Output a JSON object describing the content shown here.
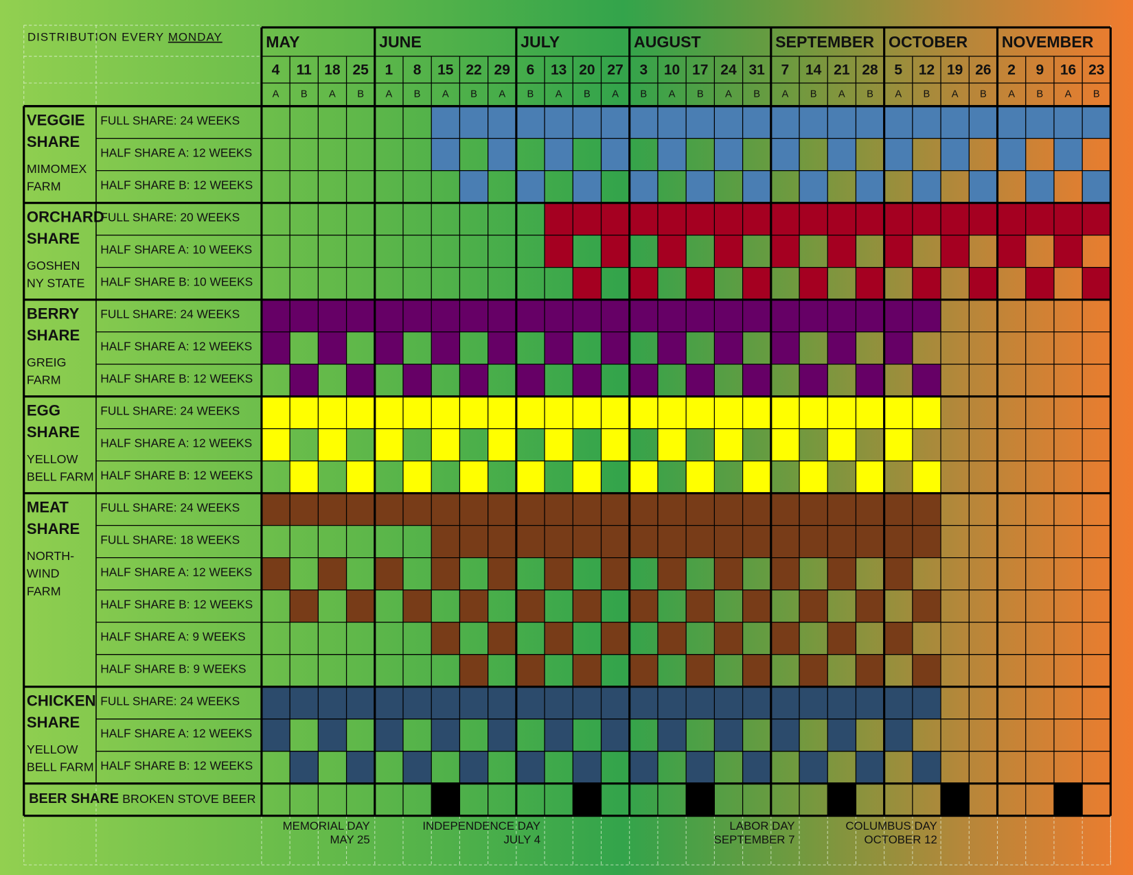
{
  "header": {
    "note": "DISTRIBUTION EVERY",
    "note_day": "MONDAY"
  },
  "months": [
    {
      "name": "MAY",
      "days": [
        {
          "date": 4,
          "week": "A"
        },
        {
          "date": 11,
          "week": "B"
        },
        {
          "date": 18,
          "week": "A"
        },
        {
          "date": 25,
          "week": "B"
        }
      ]
    },
    {
      "name": "JUNE",
      "days": [
        {
          "date": 1,
          "week": "A"
        },
        {
          "date": 8,
          "week": "B"
        },
        {
          "date": 15,
          "week": "A"
        },
        {
          "date": 22,
          "week": "B"
        },
        {
          "date": 29,
          "week": "A"
        }
      ]
    },
    {
      "name": "JULY",
      "days": [
        {
          "date": 6,
          "week": "B"
        },
        {
          "date": 13,
          "week": "A"
        },
        {
          "date": 20,
          "week": "B"
        },
        {
          "date": 27,
          "week": "A"
        }
      ]
    },
    {
      "name": "AUGUST",
      "days": [
        {
          "date": 3,
          "week": "B"
        },
        {
          "date": 10,
          "week": "A"
        },
        {
          "date": 17,
          "week": "B"
        },
        {
          "date": 24,
          "week": "A"
        },
        {
          "date": 31,
          "week": "B"
        }
      ]
    },
    {
      "name": "SEPTEMBER",
      "days": [
        {
          "date": 7,
          "week": "A"
        },
        {
          "date": 14,
          "week": "B"
        },
        {
          "date": 21,
          "week": "A"
        },
        {
          "date": 28,
          "week": "B"
        }
      ]
    },
    {
      "name": "OCTOBER",
      "days": [
        {
          "date": 5,
          "week": "A"
        },
        {
          "date": 12,
          "week": "B"
        },
        {
          "date": 19,
          "week": "A"
        },
        {
          "date": 26,
          "week": "B"
        }
      ]
    },
    {
      "name": "NOVEMBER",
      "days": [
        {
          "date": 2,
          "week": "A"
        },
        {
          "date": 9,
          "week": "B"
        },
        {
          "date": 16,
          "week": "A"
        },
        {
          "date": 23,
          "week": "B"
        }
      ]
    }
  ],
  "groups": [
    {
      "name": [
        "VEGGIE",
        "SHARE"
      ],
      "farm": [
        "MIMOMEX",
        "FARM"
      ],
      "color": "#4a7eb3",
      "rows": [
        {
          "label": "FULL SHARE: 24 WEEKS",
          "cells": "000000111111111111111111111111"
        },
        {
          "label": "HALF SHARE A: 12 WEEKS",
          "cells": "000000101010101010101010101010"
        },
        {
          "label": "HALF SHARE B: 12 WEEKS",
          "cells": "000000010101010101010101010101"
        }
      ]
    },
    {
      "name": [
        "ORCHARD",
        "SHARE"
      ],
      "farm": [
        "GOSHEN",
        "NY STATE"
      ],
      "color": "#a50021",
      "rows": [
        {
          "label": "FULL SHARE: 20 WEEKS",
          "cells": "000000000011111111111111111111"
        },
        {
          "label": "HALF SHARE A: 10 WEEKS",
          "cells": "000000000010101010101010101010"
        },
        {
          "label": "HALF SHARE B: 10 WEEKS",
          "cells": "000000000001010101010101010101"
        }
      ]
    },
    {
      "name": [
        "BERRY",
        "SHARE"
      ],
      "farm": [
        "GREIG",
        "FARM"
      ],
      "color": "#660066",
      "rows": [
        {
          "label": "FULL SHARE: 24 WEEKS",
          "cells": "111111111111111111111111000000"
        },
        {
          "label": "HALF SHARE A: 12 WEEKS",
          "cells": "101010101010101010101010000000"
        },
        {
          "label": "HALF SHARE B: 12 WEEKS",
          "cells": "010101010101010101010101000000"
        }
      ]
    },
    {
      "name": [
        "EGG",
        "SHARE"
      ],
      "farm": [
        "YELLOW",
        "BELL FARM"
      ],
      "color": "#ffff00",
      "rows": [
        {
          "label": "FULL SHARE: 24 WEEKS",
          "cells": "111111111111111111111111000000"
        },
        {
          "label": "HALF SHARE A: 12 WEEKS",
          "cells": "101010101010101010101010000000"
        },
        {
          "label": "HALF SHARE B: 12 WEEKS",
          "cells": "010101010101010101010101000000"
        }
      ]
    },
    {
      "name": [
        "MEAT",
        "SHARE"
      ],
      "farm": [
        "NORTH-",
        "WIND",
        "FARM"
      ],
      "color": "#783c18",
      "rows": [
        {
          "label": "FULL SHARE: 24 WEEKS",
          "cells": "111111111111111111111111000000"
        },
        {
          "label": "FULL SHARE: 18 WEEKS",
          "cells": "000000111111111111111111000000"
        },
        {
          "label": "HALF SHARE A: 12 WEEKS",
          "cells": "101010101010101010101010000000"
        },
        {
          "label": "HALF SHARE B: 12 WEEKS",
          "cells": "010101010101010101010101000000"
        },
        {
          "label": "HALF SHARE A:  9 WEEKS",
          "cells": "000000101010101010101010000000"
        },
        {
          "label": "HALF SHARE B: 9 WEEKS",
          "cells": "000000010101010101010101000000"
        }
      ]
    },
    {
      "name": [
        "CHICKEN",
        "SHARE"
      ],
      "farm": [
        "YELLOW",
        "BELL FARM"
      ],
      "color": "#2c4b6c",
      "rows": [
        {
          "label": "FULL SHARE: 24 WEEKS",
          "cells": "111111111111111111111111000000"
        },
        {
          "label": "HALF SHARE A: 12 WEEKS",
          "cells": "101010101010101010101010000000"
        },
        {
          "label": "HALF SHARE B: 12 WEEKS",
          "cells": "010101010101010101010101000000"
        }
      ]
    }
  ],
  "beer": {
    "name": "BEER SHARE",
    "farm": "BROKEN STOVE BEER",
    "color": "#000000",
    "cells": "000000100001000100001000100010"
  },
  "holidays": [
    {
      "name": "MEMORIAL DAY",
      "date": "MAY 25"
    },
    {
      "name": "INDEPENDENCE DAY",
      "date": "JULY 4"
    },
    {
      "name": "LABOR DAY",
      "date": "SEPTEMBER 7"
    },
    {
      "name": "COLUMBUS DAY",
      "date": "OCTOBER 12"
    }
  ]
}
